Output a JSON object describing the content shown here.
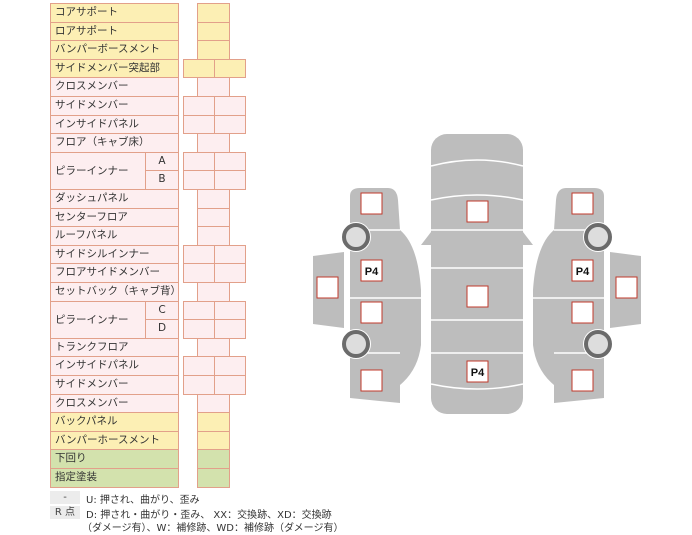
{
  "rows": [
    {
      "label": "コアサポート",
      "color": "yellow",
      "cells": 1
    },
    {
      "label": "ロアサポート",
      "color": "yellow",
      "cells": 1
    },
    {
      "label": "バンパーボースメント",
      "color": "yellow",
      "cells": 1
    },
    {
      "label": "サイドメンバー突起部",
      "color": "yellow",
      "cells": 2
    },
    {
      "label": "クロスメンバー",
      "color": "pink",
      "cells": 1
    },
    {
      "label": "サイドメンバー",
      "color": "pink",
      "cells": 2
    },
    {
      "label": "インサイドパネル",
      "color": "pink",
      "cells": 2
    },
    {
      "label": "フロア（キャブ床）",
      "color": "pink",
      "cells": 1
    },
    {
      "label": "ピラーインナー",
      "color": "pink",
      "cells": 2,
      "sub": [
        "A",
        "B"
      ]
    },
    {
      "label": "ダッシュパネル",
      "color": "pink",
      "cells": 1
    },
    {
      "label": "センターフロア",
      "color": "pink",
      "cells": 1
    },
    {
      "label": "ルーフパネル",
      "color": "pink",
      "cells": 1
    },
    {
      "label": "サイドシルインナー",
      "color": "pink",
      "cells": 2
    },
    {
      "label": "フロアサイドメンバー",
      "color": "pink",
      "cells": 2
    },
    {
      "label": "セットバック（キャブ背）",
      "color": "pink",
      "cells": 1
    },
    {
      "label": "ピラーインナー",
      "color": "pink",
      "cells": 2,
      "sub": [
        "C",
        "D"
      ]
    },
    {
      "label": "トランクフロア",
      "color": "pink",
      "cells": 1
    },
    {
      "label": "インサイドパネル",
      "color": "pink",
      "cells": 2
    },
    {
      "label": "サイドメンバー",
      "color": "pink",
      "cells": 2
    },
    {
      "label": "クロスメンバー",
      "color": "pink",
      "cells": 1
    },
    {
      "label": "バックパネル",
      "color": "yellow",
      "cells": 1
    },
    {
      "label": "バンパーホースメント",
      "color": "yellow",
      "cells": 1
    },
    {
      "label": "下回り",
      "color": "green",
      "cells": 1
    },
    {
      "label": "指定塗装",
      "color": "green",
      "cells": 1
    }
  ],
  "legend": {
    "key1": "-",
    "text1": "U: 押され、曲がり、歪み",
    "key2": "R 点",
    "text2a": "D: 押され・曲がり・歪み、 XX：交換跡、XD：交換跡",
    "text2b": "（ダメージ有）、W：補修跡、WD：補修跡（ダメージ有）"
  },
  "diagram": {
    "marker": "P4"
  },
  "colors": {
    "yellow": "#fcefb4",
    "pink": "#fdeef0",
    "green": "#d3e2ad",
    "border": "#e2a08a",
    "body": "#bdbdbd",
    "box_border": "#c0392b"
  }
}
